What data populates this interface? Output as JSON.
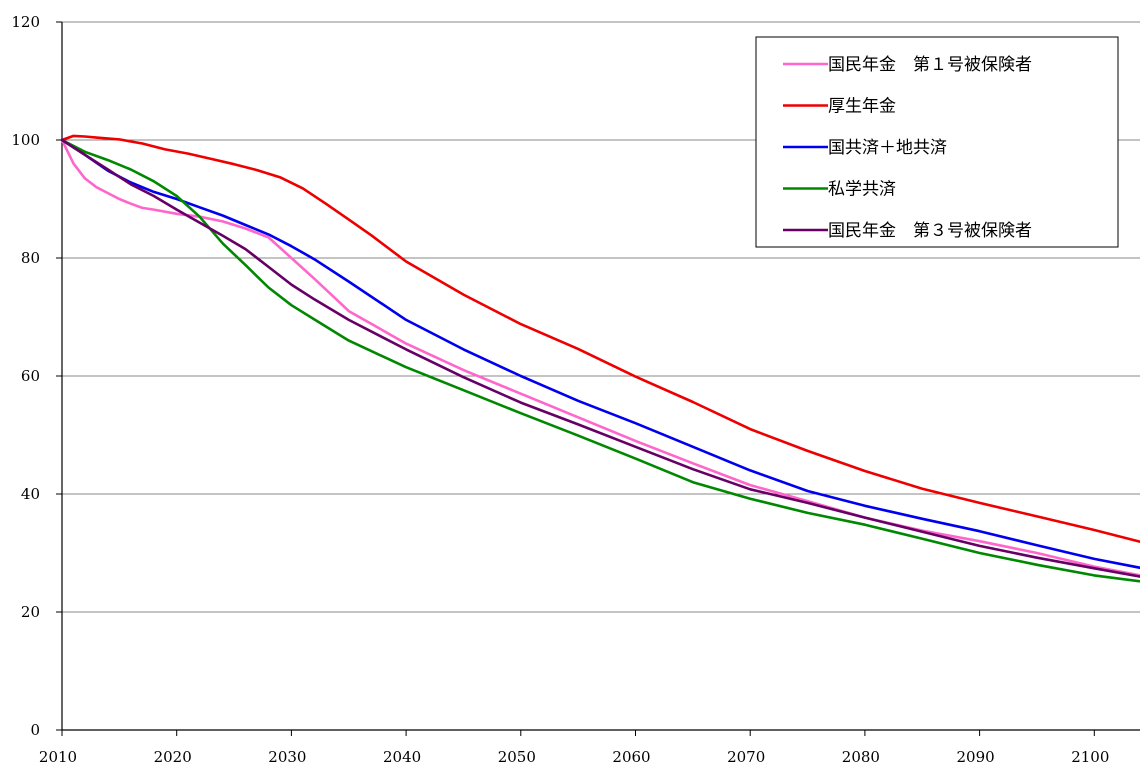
{
  "chart_data": {
    "type": "line",
    "title": "",
    "xlabel": "",
    "ylabel": "",
    "xlim": [
      2010,
      2104
    ],
    "ylim": [
      0,
      120
    ],
    "x_ticks": [
      2010,
      2020,
      2030,
      2040,
      2050,
      2060,
      2070,
      2080,
      2090,
      2100
    ],
    "y_ticks": [
      0,
      20,
      40,
      60,
      80,
      100,
      120
    ],
    "grid": "horizontal",
    "legend_position": "top-right",
    "series": [
      {
        "name": "国民年金　第１号被保険者",
        "color": "#ff66cc",
        "x": [
          2010,
          2011,
          2012,
          2013,
          2014,
          2015,
          2016,
          2017,
          2018,
          2020,
          2022,
          2024,
          2026,
          2028,
          2030,
          2032,
          2035,
          2040,
          2045,
          2050,
          2055,
          2060,
          2065,
          2070,
          2075,
          2080,
          2085,
          2090,
          2095,
          2100,
          2104
        ],
        "y": [
          100,
          96,
          93.5,
          92,
          91,
          90,
          89.2,
          88.5,
          88.2,
          87.5,
          87,
          86.2,
          85,
          83.5,
          80,
          76.5,
          71,
          65.5,
          61,
          57,
          53,
          49,
          45.2,
          41.5,
          38.8,
          36,
          33.8,
          32,
          30,
          27.7,
          26.2
        ]
      },
      {
        "name": "厚生年金",
        "color": "#ee0000",
        "x": [
          2010,
          2011,
          2012,
          2013,
          2015,
          2017,
          2019,
          2021,
          2023,
          2025,
          2027,
          2029,
          2031,
          2033,
          2035,
          2037,
          2040,
          2045,
          2050,
          2055,
          2060,
          2065,
          2070,
          2075,
          2080,
          2085,
          2090,
          2095,
          2100,
          2104
        ],
        "y": [
          100,
          100.7,
          100.6,
          100.4,
          100.1,
          99.4,
          98.4,
          97.7,
          96.8,
          95.9,
          94.9,
          93.7,
          91.8,
          89.2,
          86.5,
          83.8,
          79.4,
          73.8,
          68.8,
          64.6,
          59.9,
          55.6,
          51,
          47.3,
          43.9,
          40.9,
          38.5,
          36.2,
          33.9,
          31.9
        ]
      },
      {
        "name": "国共済＋地共済",
        "color": "#0000ee",
        "x": [
          2010,
          2012,
          2014,
          2016,
          2018,
          2020,
          2022,
          2024,
          2026,
          2028,
          2030,
          2032,
          2035,
          2040,
          2045,
          2050,
          2055,
          2060,
          2065,
          2070,
          2075,
          2080,
          2085,
          2090,
          2095,
          2100,
          2104
        ],
        "y": [
          100,
          97.5,
          94.8,
          92.8,
          91.2,
          90,
          88.6,
          87.2,
          85.6,
          84,
          82,
          79.8,
          76,
          69.5,
          64.5,
          60,
          55.8,
          52,
          48,
          44,
          40.5,
          38,
          35.8,
          33.7,
          31.3,
          29,
          27.5
        ]
      },
      {
        "name": "私学共済",
        "color": "#008800",
        "x": [
          2010,
          2012,
          2014,
          2016,
          2018,
          2020,
          2022,
          2024,
          2026,
          2028,
          2030,
          2032,
          2035,
          2040,
          2045,
          2050,
          2055,
          2060,
          2065,
          2070,
          2075,
          2080,
          2085,
          2090,
          2095,
          2100,
          2104
        ],
        "y": [
          100,
          98,
          96.6,
          95,
          93,
          90.5,
          87,
          82.5,
          78.8,
          75,
          72,
          69.6,
          66,
          61.5,
          57.6,
          53.7,
          49.9,
          46,
          42,
          39.2,
          36.8,
          34.8,
          32.4,
          30,
          28,
          26.2,
          25.2
        ]
      },
      {
        "name": "国民年金　第３号被保険者",
        "color": "#660066",
        "x": [
          2010,
          2012,
          2014,
          2016,
          2018,
          2020,
          2022,
          2024,
          2026,
          2028,
          2030,
          2032,
          2035,
          2040,
          2045,
          2050,
          2055,
          2060,
          2065,
          2070,
          2075,
          2080,
          2085,
          2090,
          2095,
          2100,
          2104
        ],
        "y": [
          100,
          97.5,
          95,
          92.5,
          90.5,
          88.2,
          86,
          83.8,
          81.5,
          78.5,
          75.5,
          73,
          69.5,
          64.5,
          59.8,
          55.5,
          51.8,
          48,
          44.2,
          40.8,
          38.5,
          36,
          33.6,
          31.2,
          29.2,
          27.4,
          26
        ]
      }
    ]
  }
}
